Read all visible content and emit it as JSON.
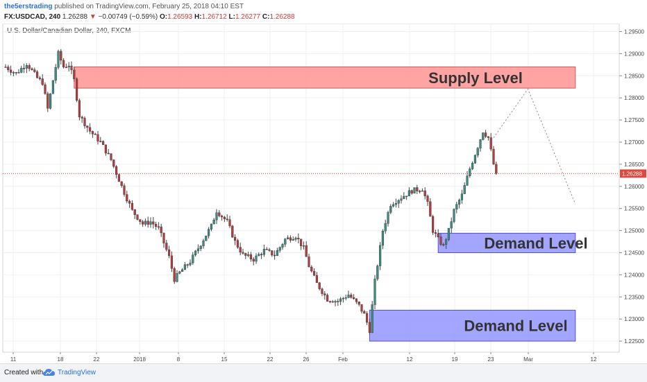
{
  "header": {
    "author": "the5erstrading",
    "published_text": "published on TradingView.com, February 25, 2018 04:10 EST",
    "symbol": "FX:USDCAD, 240",
    "last": "1.26288",
    "change_arrow": "▼",
    "change": "−0.00749 (−0.59%)",
    "o_label": "O:",
    "o_value": "1.26593",
    "h_label": "H:",
    "h_value": "1.26712",
    "l_label": "L:",
    "l_value": "1.26277",
    "c_label": "C:",
    "c_value": "1.26288"
  },
  "footer": {
    "created_with": "Created with",
    "brand": "TradingView",
    "logo_icon": "tradingview-cloud-icon"
  },
  "colors": {
    "up": "#3d8b83",
    "down": "#b43c3c",
    "wick": "#444444",
    "supply_fill": "#ff9a9a",
    "supply_border": "#c94a4a",
    "demand_fill": "#9a9cff",
    "demand_border": "#3a3fd1",
    "price_line": "#e0483c",
    "projection": "#888888"
  },
  "chart_data": {
    "type": "candlestick",
    "title": "U.S. Dollar/Canadian Dollar, 240, FXCM",
    "ylim": [
      1.2225,
      1.2968
    ],
    "y_ticks": [
      "1.29500",
      "1.29000",
      "1.28500",
      "1.28000",
      "1.27500",
      "1.27000",
      "1.26500",
      "1.26000",
      "1.25500",
      "1.25000",
      "1.24500",
      "1.24000",
      "1.23500",
      "1.23000",
      "1.22500"
    ],
    "x_ticks": [
      "11",
      "18",
      "22",
      "2018",
      "8",
      "15",
      "22",
      "26",
      "Feb",
      "12",
      "19",
      "23",
      "Mar",
      "12"
    ],
    "current_price": "1.26288",
    "price_path": [
      [
        0,
        1.287
      ],
      [
        4,
        1.2855
      ],
      [
        8,
        1.2878
      ],
      [
        12,
        1.2845
      ],
      [
        14,
        1.2835
      ],
      [
        16,
        1.2775
      ],
      [
        18,
        1.284
      ],
      [
        20,
        1.29
      ],
      [
        22,
        1.287
      ],
      [
        24,
        1.2875
      ],
      [
        26,
        1.284
      ],
      [
        28,
        1.276
      ],
      [
        32,
        1.2725
      ],
      [
        36,
        1.27
      ],
      [
        40,
        1.266
      ],
      [
        44,
        1.26
      ],
      [
        48,
        1.2545
      ],
      [
        52,
        1.2515
      ],
      [
        55,
        1.252
      ],
      [
        58,
        1.2505
      ],
      [
        62,
        1.244
      ],
      [
        64,
        1.239
      ],
      [
        66,
        1.2405
      ],
      [
        70,
        1.243
      ],
      [
        74,
        1.247
      ],
      [
        78,
        1.251
      ],
      [
        80,
        1.2545
      ],
      [
        84,
        1.252
      ],
      [
        87,
        1.2475
      ],
      [
        90,
        1.2445
      ],
      [
        94,
        1.2435
      ],
      [
        98,
        1.2455
      ],
      [
        102,
        1.2445
      ],
      [
        106,
        1.248
      ],
      [
        110,
        1.2488
      ],
      [
        113,
        1.246
      ],
      [
        115,
        1.242
      ],
      [
        118,
        1.238
      ],
      [
        122,
        1.2345
      ],
      [
        126,
        1.234
      ],
      [
        130,
        1.2355
      ],
      [
        134,
        1.233
      ],
      [
        136,
        1.231
      ],
      [
        138,
        1.2275
      ],
      [
        140,
        1.2385
      ],
      [
        143,
        1.25
      ],
      [
        146,
        1.256
      ],
      [
        150,
        1.2575
      ],
      [
        154,
        1.259
      ],
      [
        158,
        1.2595
      ],
      [
        160,
        1.256
      ],
      [
        162,
        1.25
      ],
      [
        164,
        1.248
      ],
      [
        166,
        1.2465
      ],
      [
        168,
        1.25
      ],
      [
        170,
        1.2545
      ],
      [
        173,
        1.258
      ],
      [
        176,
        1.264
      ],
      [
        179,
        1.269
      ],
      [
        181,
        1.2725
      ],
      [
        183,
        1.271
      ],
      [
        185,
        1.265
      ],
      [
        186,
        1.2629
      ]
    ],
    "annotations": [
      {
        "type": "zone",
        "label": "Supply Level",
        "y_from": 1.2822,
        "y_to": 1.287,
        "t_from": 26,
        "t_to": 216
      },
      {
        "type": "zone",
        "label": "Demand Level",
        "y_from": 1.245,
        "y_to": 1.2494,
        "t_from": 164,
        "t_to": 216
      },
      {
        "type": "zone",
        "label": "Demand Level",
        "y_from": 1.225,
        "y_to": 1.232,
        "t_from": 138,
        "t_to": 216
      },
      {
        "type": "projection",
        "points": [
          [
            185,
            1.271
          ],
          [
            198,
            1.282
          ],
          [
            216,
            1.256
          ]
        ]
      }
    ]
  }
}
